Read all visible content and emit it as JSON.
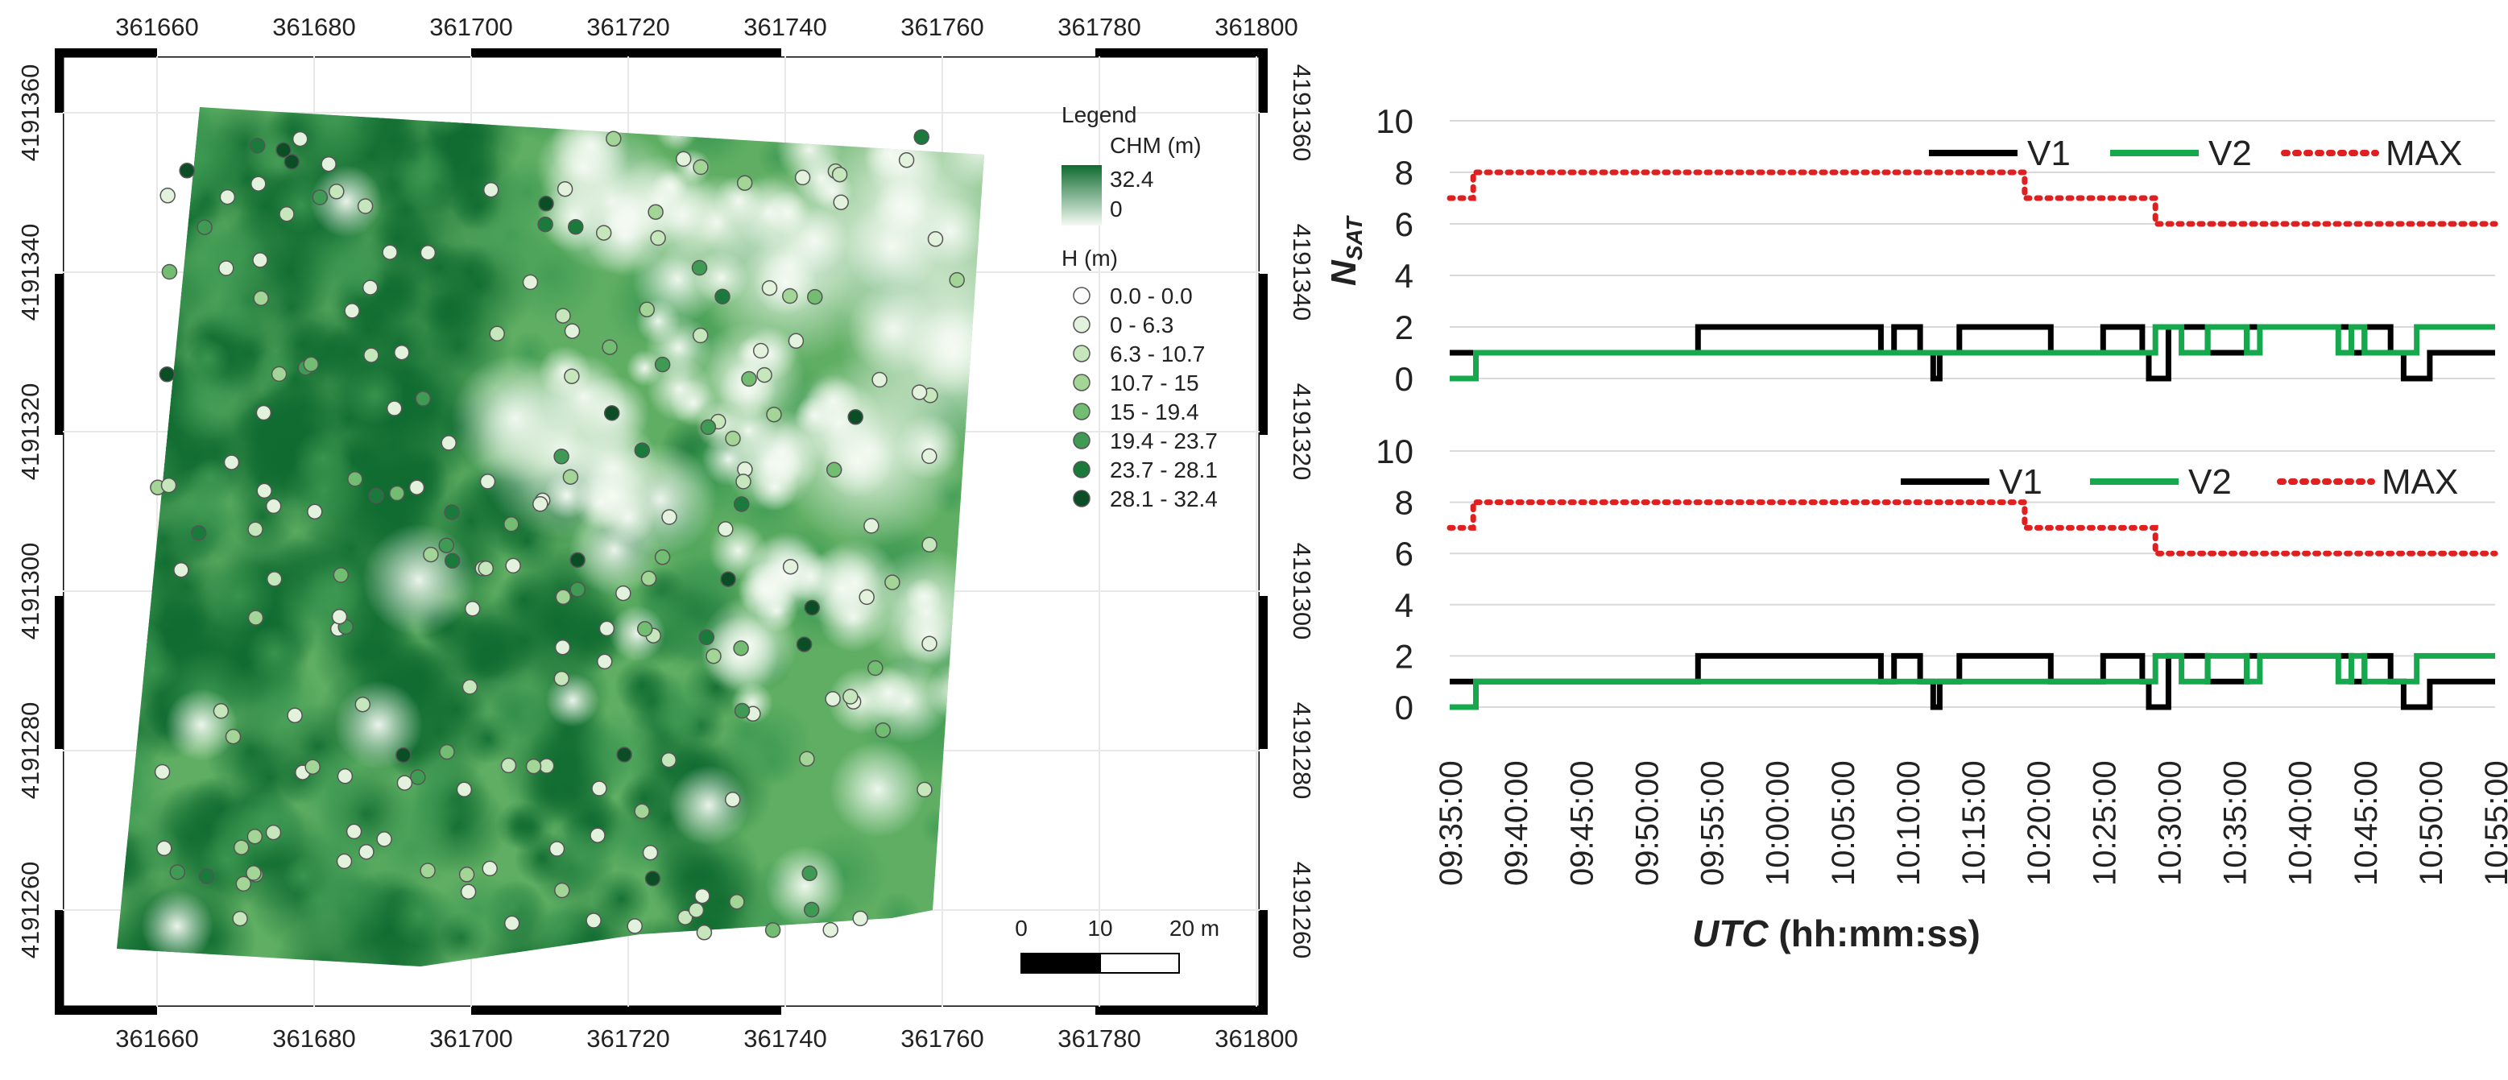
{
  "colors": {
    "v1": "#000000",
    "v2": "#16a84c",
    "max": "#e02020",
    "grid": "#d9d9d9",
    "chm_high": "#0f6b30",
    "chm_low": "#f4faf2"
  },
  "map": {
    "x_ticks": [
      "361660",
      "361680",
      "361700",
      "361720",
      "361740",
      "361760",
      "361780",
      "361800"
    ],
    "y_ticks": [
      "4191360",
      "4191340",
      "4191320",
      "4191300",
      "4191280",
      "4191260"
    ],
    "legend": {
      "title": "Legend",
      "chm_title": "CHM (m)",
      "chm_max": "32.4",
      "chm_min": "0",
      "h_title": "H (m)",
      "classes": [
        {
          "label": "0.0 - 0.0",
          "color": "#ffffff"
        },
        {
          "label": "0 - 6.3",
          "color": "#e3f2dd"
        },
        {
          "label": "6.3 - 10.7",
          "color": "#c6e6bb"
        },
        {
          "label": "10.7 - 15",
          "color": "#a3d596"
        },
        {
          "label": "15 - 19.4",
          "color": "#72bd71"
        },
        {
          "label": "19.4 - 23.7",
          "color": "#3f9a53"
        },
        {
          "label": "23.7 - 28.1",
          "color": "#1a7a3c"
        },
        {
          "label": "28.1 - 32.4",
          "color": "#0b4d24"
        }
      ]
    },
    "scalebar": {
      "labels": [
        "0",
        "10",
        "20 m"
      ]
    }
  },
  "chart_data": [
    {
      "type": "line",
      "title": "",
      "xlabel_italic": "UTC",
      "xlabel_rest": " (hh:mm:ss)",
      "ylabel_main": "N",
      "ylabel_sub": "SAT",
      "ylim": [
        0,
        10
      ],
      "yticks": [
        "0",
        "2",
        "4",
        "6",
        "8",
        "10"
      ],
      "x_range_minutes": [
        0,
        80
      ],
      "xticks": [
        "09:35:00",
        "09:40:00",
        "09:45:00",
        "09:50:00",
        "09:55:00",
        "10:00:00",
        "10:05:00",
        "10:10:00",
        "10:15:00",
        "10:20:00",
        "10:25:00",
        "10:30:00",
        "10:35:00",
        "10:40:00",
        "10:45:00",
        "10:50:00",
        "10:55:00"
      ],
      "legend": [
        "V1",
        "V2",
        "MAX"
      ],
      "series": [
        {
          "name": "V1",
          "step": [
            [
              0,
              1
            ],
            [
              19,
              2
            ],
            [
              33,
              1
            ],
            [
              34,
              2
            ],
            [
              36,
              1
            ],
            [
              37,
              0
            ],
            [
              37.5,
              1
            ],
            [
              39,
              2
            ],
            [
              46,
              1
            ],
            [
              50,
              2
            ],
            [
              53,
              1
            ],
            [
              53.5,
              0
            ],
            [
              55,
              2
            ],
            [
              58,
              1
            ],
            [
              61,
              2
            ],
            [
              69,
              1
            ],
            [
              70,
              2
            ],
            [
              72,
              1
            ],
            [
              73,
              0
            ],
            [
              75,
              1
            ],
            [
              80,
              1
            ]
          ]
        },
        {
          "name": "V2",
          "step": [
            [
              0,
              0
            ],
            [
              2,
              1
            ],
            [
              54,
              2
            ],
            [
              56,
              1
            ],
            [
              58,
              2
            ],
            [
              61,
              1
            ],
            [
              62,
              2
            ],
            [
              68,
              1
            ],
            [
              69,
              2
            ],
            [
              70,
              1
            ],
            [
              74,
              2
            ],
            [
              80,
              2
            ]
          ]
        },
        {
          "name": "MAX",
          "step": [
            [
              0,
              7
            ],
            [
              1.8,
              8
            ],
            [
              44,
              7
            ],
            [
              54,
              6
            ],
            [
              80,
              6
            ]
          ]
        }
      ]
    },
    {
      "type": "line",
      "title": "",
      "ylim": [
        0,
        10
      ],
      "yticks": [
        "0",
        "2",
        "4",
        "6",
        "8",
        "10"
      ],
      "x_range_minutes": [
        0,
        80
      ],
      "legend": [
        "V1",
        "V2",
        "MAX"
      ],
      "series": [
        {
          "name": "V1",
          "step": [
            [
              0,
              1
            ],
            [
              19,
              2
            ],
            [
              33,
              1
            ],
            [
              34,
              2
            ],
            [
              36,
              1
            ],
            [
              37,
              0
            ],
            [
              37.5,
              1
            ],
            [
              39,
              2
            ],
            [
              46,
              1
            ],
            [
              50,
              2
            ],
            [
              53,
              1
            ],
            [
              53.5,
              0
            ],
            [
              55,
              2
            ],
            [
              58,
              1
            ],
            [
              61,
              2
            ],
            [
              69,
              1
            ],
            [
              70,
              2
            ],
            [
              72,
              1
            ],
            [
              73,
              0
            ],
            [
              75,
              1
            ],
            [
              80,
              1
            ]
          ]
        },
        {
          "name": "V2",
          "step": [
            [
              0,
              0
            ],
            [
              2,
              1
            ],
            [
              54,
              2
            ],
            [
              56,
              1
            ],
            [
              58,
              2
            ],
            [
              61,
              1
            ],
            [
              62,
              2
            ],
            [
              68,
              1
            ],
            [
              69,
              2
            ],
            [
              70,
              1
            ],
            [
              74,
              2
            ],
            [
              80,
              2
            ]
          ]
        },
        {
          "name": "MAX",
          "step": [
            [
              0,
              7
            ],
            [
              1.8,
              8
            ],
            [
              44,
              7
            ],
            [
              54,
              6
            ],
            [
              80,
              6
            ]
          ]
        }
      ]
    }
  ]
}
